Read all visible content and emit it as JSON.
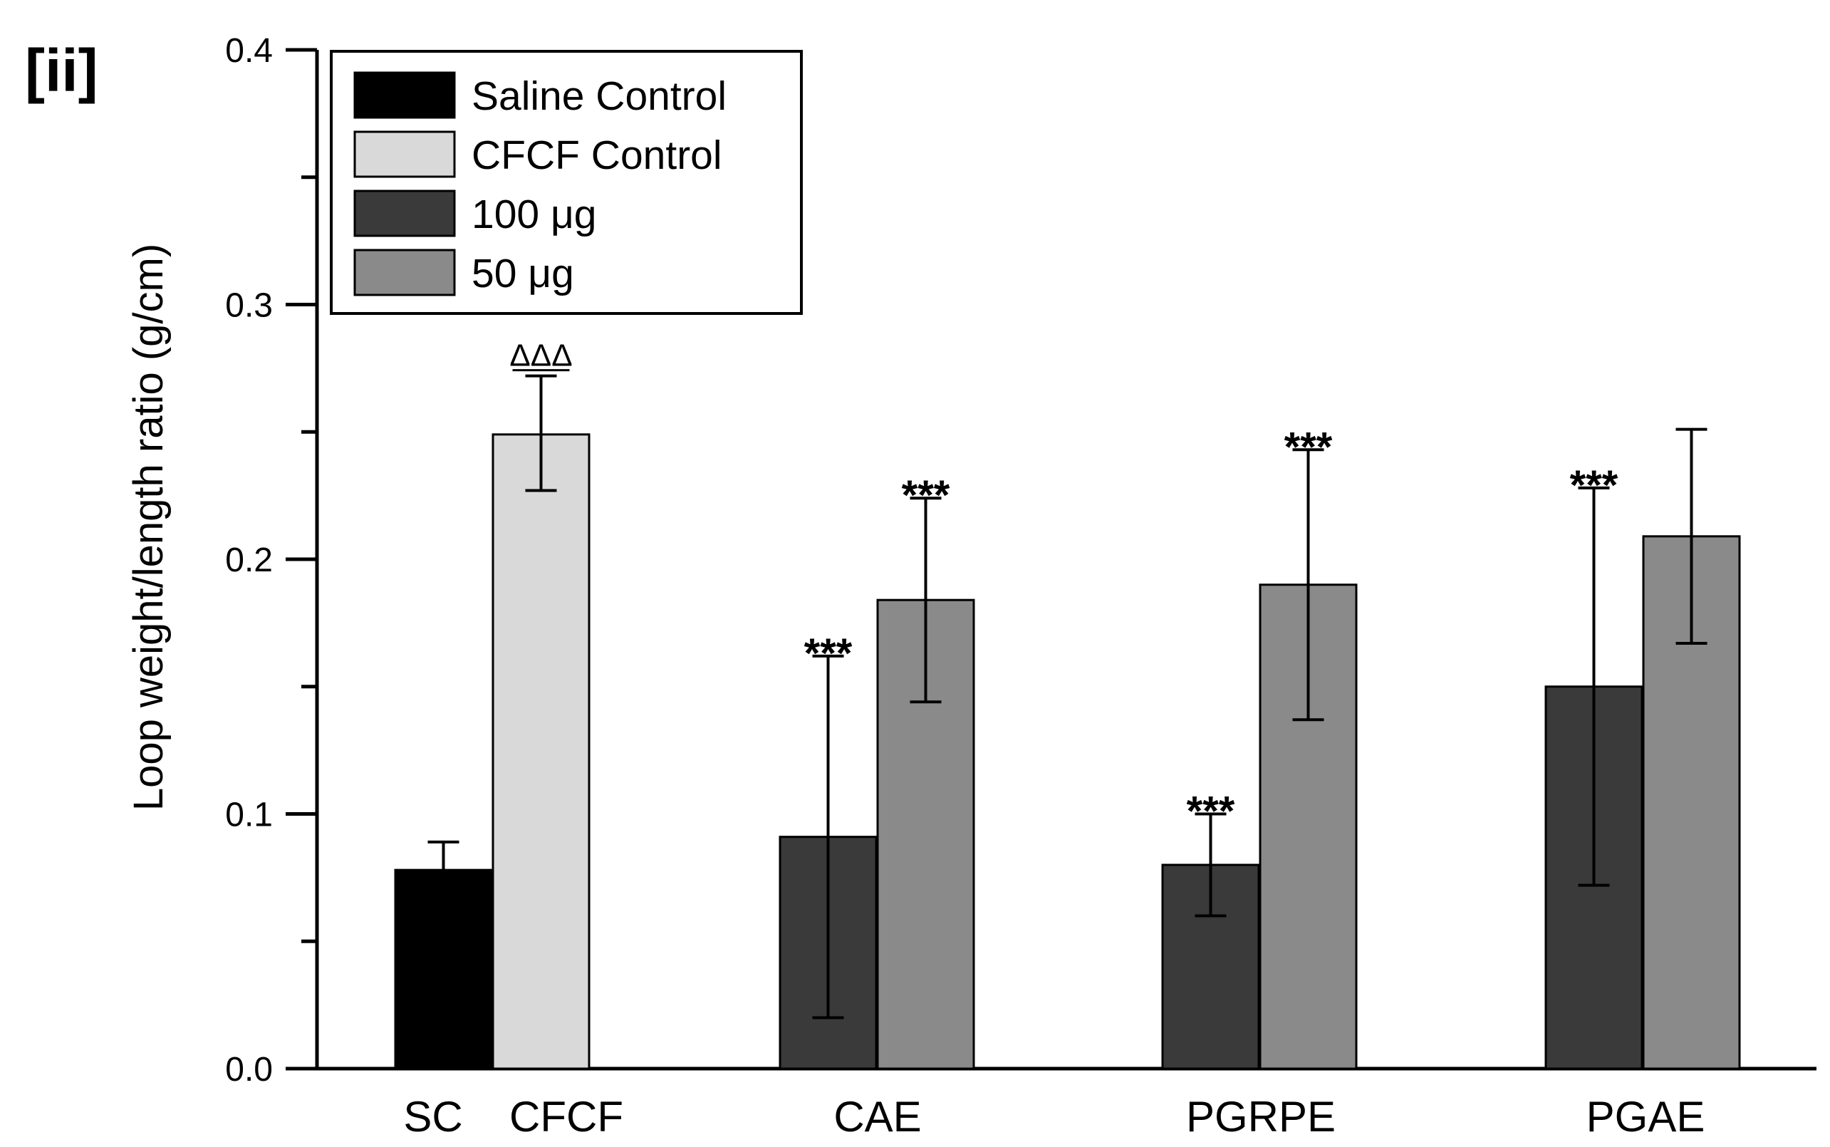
{
  "panel_label": "[ii]",
  "chart_data": {
    "type": "bar",
    "title": "",
    "xlabel": "",
    "ylabel": "Loop weight/length ratio (g/cm)",
    "ylim": [
      0.0,
      0.4
    ],
    "yticks": [
      0.0,
      0.1,
      0.2,
      0.3,
      0.4
    ],
    "ytick_labels": [
      "0.0",
      "0.1",
      "0.2",
      "0.3",
      "0.4"
    ],
    "categories": [
      "SC",
      "CFCF",
      "CAE",
      "PGRPE",
      "PGAE"
    ],
    "legend_position": "top-left",
    "series": [
      {
        "name": "Saline Control",
        "color": "#000000"
      },
      {
        "name": "CFCF Control",
        "color": "#d9d9d9"
      },
      {
        "name": "100 μg",
        "color": "#3a3a3a"
      },
      {
        "name": "50 μg",
        "color": "#8a8a8a"
      }
    ],
    "bars": [
      {
        "group": "SC",
        "series": "Saline Control",
        "value": 0.078,
        "err_low": 0.0,
        "err_high": 0.011,
        "annotation": ""
      },
      {
        "group": "CFCF",
        "series": "CFCF Control",
        "value": 0.249,
        "err_low": 0.022,
        "err_high": 0.023,
        "annotation": "ΔΔΔ"
      },
      {
        "group": "CAE",
        "series": "100 μg",
        "value": 0.091,
        "err_low": 0.071,
        "err_high": 0.071,
        "annotation": "***"
      },
      {
        "group": "CAE",
        "series": "50 μg",
        "value": 0.184,
        "err_low": 0.04,
        "err_high": 0.04,
        "annotation": "***"
      },
      {
        "group": "PGRPE",
        "series": "100 μg",
        "value": 0.08,
        "err_low": 0.02,
        "err_high": 0.02,
        "annotation": "***"
      },
      {
        "group": "PGRPE",
        "series": "50 μg",
        "value": 0.19,
        "err_low": 0.053,
        "err_high": 0.053,
        "annotation": "***"
      },
      {
        "group": "PGAE",
        "series": "100 μg",
        "value": 0.15,
        "err_low": 0.078,
        "err_high": 0.078,
        "annotation": "***"
      },
      {
        "group": "PGAE",
        "series": "50 μg",
        "value": 0.209,
        "err_low": 0.042,
        "err_high": 0.042,
        "annotation": ""
      }
    ]
  }
}
